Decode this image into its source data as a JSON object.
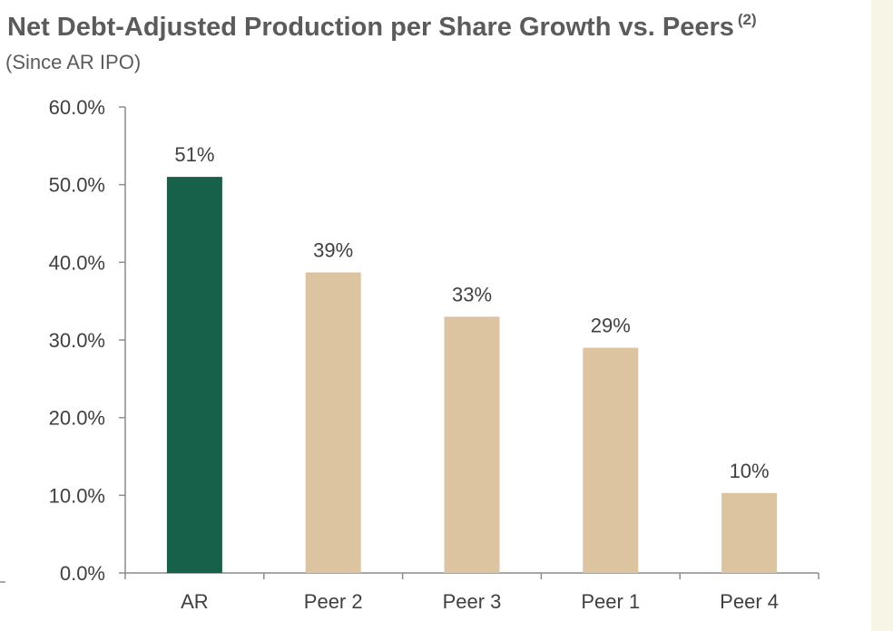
{
  "header": {
    "title": "Net Debt-Adjusted Production per Share Growth vs. Peers",
    "title_footnote": "(2)",
    "subtitle": "(Since AR IPO)"
  },
  "colors": {
    "highlight_bar": "#17604a",
    "peer_bar": "#dcc4a0",
    "axis": "#8c8c8c",
    "side_band": "#f7f5e6"
  },
  "chart_data": {
    "type": "bar",
    "title": "Net Debt-Adjusted Production per Share Growth vs. Peers",
    "subtitle": "(Since AR IPO)",
    "categories": [
      "AR",
      "Peer 2",
      "Peer 3",
      "Peer 1",
      "Peer 4"
    ],
    "values": [
      51,
      38.7,
      33,
      29,
      10.3
    ],
    "data_labels": [
      "51%",
      "39%",
      "33%",
      "29%",
      "10%"
    ],
    "highlight_index": 0,
    "ylim": [
      0,
      60
    ],
    "yticks": [
      0,
      10,
      20,
      30,
      40,
      50,
      60
    ],
    "ytick_labels": [
      "0.0%",
      "10.0%",
      "20.0%",
      "30.0%",
      "40.0%",
      "50.0%",
      "60.0%"
    ],
    "grid": false,
    "legend": "none"
  }
}
